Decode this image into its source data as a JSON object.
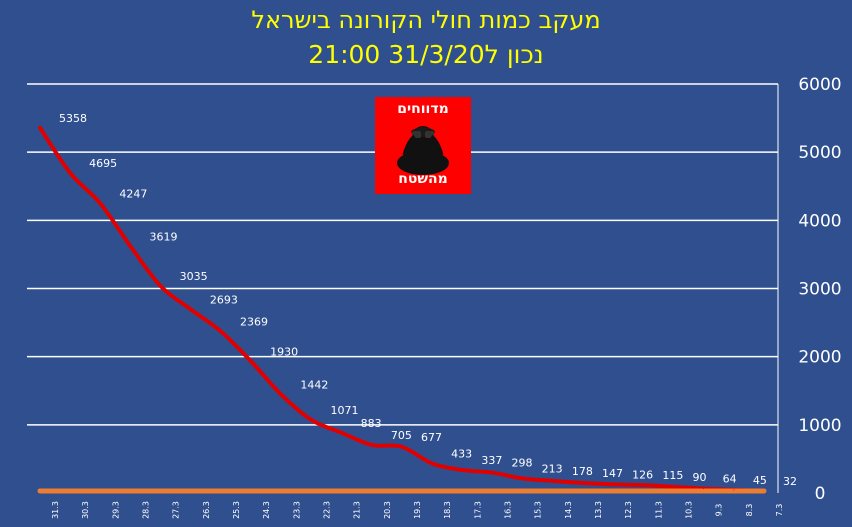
{
  "header": {
    "title_line1": "מעקב כמות חולי הקורונה בישראל",
    "title_line2": "נכון ל31/3/20 21:00"
  },
  "logo": {
    "top_text": "מדווחים",
    "bottom_text": "מהשטח"
  },
  "colors": {
    "background": "#2f4f8f",
    "title": "#ffff00",
    "line_main": "#e00000",
    "line_base": "#ed7d31",
    "grid": "#ffffff",
    "logo_bg": "#ff0000"
  },
  "chart_data": {
    "type": "line",
    "categories": [
      "31.3",
      "30.3",
      "29.3",
      "28.3",
      "27.3",
      "26.3",
      "25.3",
      "24.3",
      "23.3",
      "22.3",
      "21.3",
      "20.3",
      "19.3",
      "18.3",
      "17.3",
      "16.3",
      "15.3",
      "14.3",
      "13.3",
      "12.3",
      "11.3",
      "10.3",
      "9.3",
      "8.3",
      "7.3"
    ],
    "series": [
      {
        "values": [
          5358,
          4695,
          4247,
          3619,
          3035,
          2693,
          2369,
          1930,
          1442,
          1071,
          883,
          705,
          677,
          433,
          337,
          298,
          213,
          178,
          147,
          126,
          115,
          90,
          64,
          45,
          32
        ],
        "labels_shown": true
      },
      {
        "values": [
          30,
          30,
          30,
          30,
          30,
          30,
          30,
          30,
          30,
          30,
          30,
          30,
          30,
          30,
          30,
          30,
          30,
          30,
          30,
          30,
          30,
          30,
          30,
          30,
          30
        ],
        "labels_shown": false
      }
    ],
    "ylim": [
      0,
      6000
    ],
    "yticks": [
      0,
      1000,
      2000,
      3000,
      4000,
      5000,
      6000
    ],
    "y_axis_side": "right",
    "grid": true,
    "legend": "none"
  }
}
